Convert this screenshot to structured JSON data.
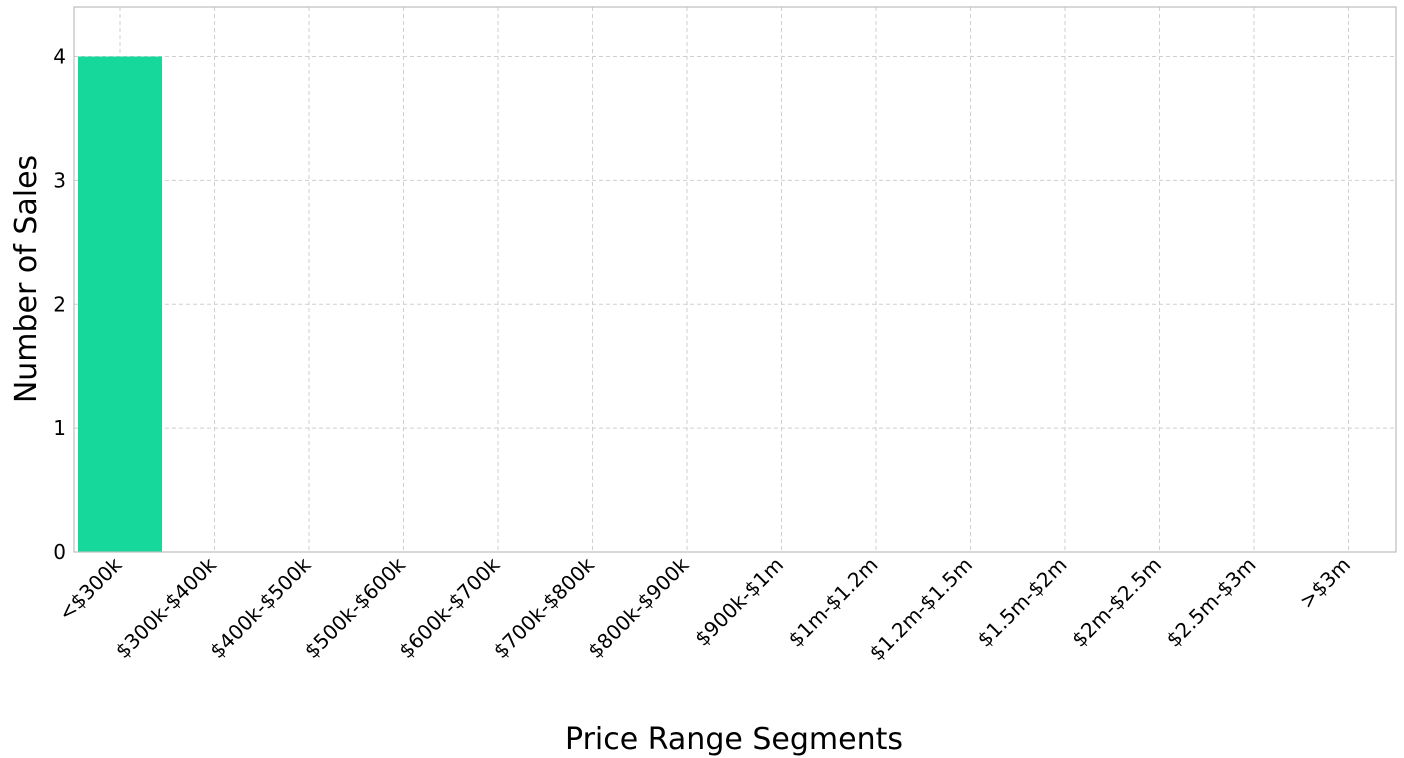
{
  "chart_data": {
    "type": "bar",
    "title": "",
    "xlabel": "Price Range Segments",
    "ylabel": "Number of Sales",
    "categories": [
      "<$300k",
      "$300k-$400k",
      "$400k-$500k",
      "$500k-$600k",
      "$600k-$700k",
      "$700k-$800k",
      "$800k-$900k",
      "$900k-$1m",
      "$1m-$1.2m",
      "$1.2m-$1.5m",
      "$1.5m-$2m",
      "$2m-$2.5m",
      "$2.5m-$3m",
      ">$3m"
    ],
    "values": [
      4,
      0,
      0,
      0,
      0,
      0,
      0,
      0,
      0,
      0,
      0,
      0,
      0,
      0
    ],
    "ylim": [
      0,
      4.4
    ],
    "yticks": [
      0,
      1,
      2,
      3,
      4
    ],
    "grid": true,
    "bar_color": "#17d89b"
  }
}
